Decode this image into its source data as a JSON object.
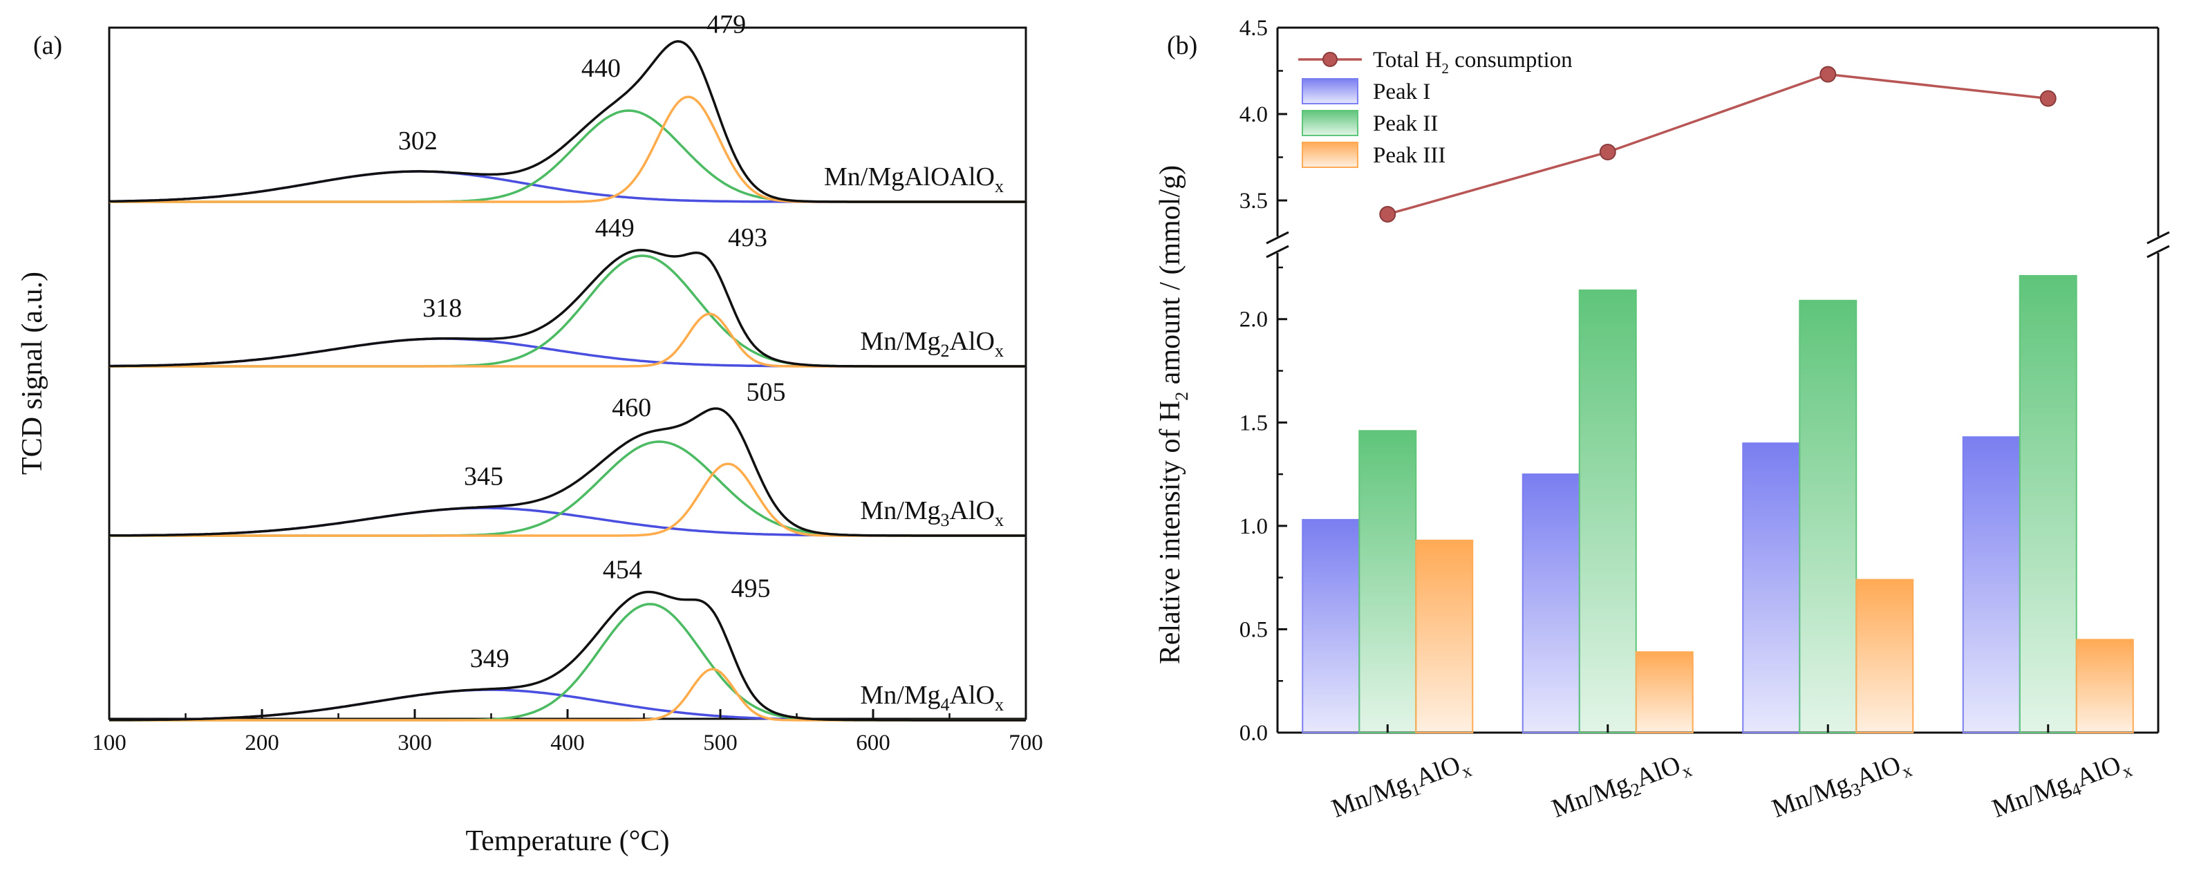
{
  "chart_data": [
    {
      "panel": "(a)",
      "type": "line",
      "xlabel": "Temperature (°C)",
      "ylabel": "TCD signal (a.u.)",
      "xlim": [
        100,
        700
      ],
      "xticks": [
        "100",
        "200",
        "300",
        "400",
        "500",
        "600",
        "700"
      ],
      "samples": [
        {
          "name": "Mn/MgAlO",
          "sub1": "",
          "sub2": "x",
          "peak_labels": [
            "302",
            "440",
            "479"
          ],
          "peaks": [
            {
              "name": "Peak I",
              "center": 302,
              "height": 0.22,
              "width": 70,
              "color": "#4a4fe0"
            },
            {
              "name": "Peak II",
              "center": 440,
              "height": 0.66,
              "width": 35,
              "color": "#4cbb63"
            },
            {
              "name": "Peak III",
              "center": 479,
              "height": 0.76,
              "width": 20,
              "color": "#ffac4c"
            }
          ]
        },
        {
          "name": "Mn/Mg",
          "sub1": "2",
          "sub2": "x",
          "peak_labels": [
            "318",
            "449",
            "493"
          ],
          "peaks": [
            {
              "name": "Peak I",
              "center": 318,
              "height": 0.2,
              "width": 72,
              "color": "#4a4fe0"
            },
            {
              "name": "Peak II",
              "center": 449,
              "height": 0.8,
              "width": 36,
              "color": "#4cbb63"
            },
            {
              "name": "Peak III",
              "center": 493,
              "height": 0.38,
              "width": 14,
              "color": "#ffac4c"
            }
          ]
        },
        {
          "name": "Mn/Mg",
          "sub1": "3",
          "sub2": "x",
          "peak_labels": [
            "345",
            "460",
            "505"
          ],
          "peaks": [
            {
              "name": "Peak I",
              "center": 345,
              "height": 0.2,
              "width": 75,
              "color": "#4a4fe0"
            },
            {
              "name": "Peak II",
              "center": 460,
              "height": 0.68,
              "width": 38,
              "color": "#4cbb63"
            },
            {
              "name": "Peak III",
              "center": 505,
              "height": 0.52,
              "width": 18,
              "color": "#ffac4c"
            }
          ]
        },
        {
          "name": "Mn/Mg",
          "sub1": "4",
          "sub2": "x",
          "peak_labels": [
            "349",
            "454",
            "495"
          ],
          "peaks": [
            {
              "name": "Peak I",
              "center": 349,
              "height": 0.22,
              "width": 75,
              "color": "#4a4fe0"
            },
            {
              "name": "Peak II",
              "center": 454,
              "height": 0.84,
              "width": 33,
              "color": "#4cbb63"
            },
            {
              "name": "Peak III",
              "center": 495,
              "height": 0.37,
              "width": 14,
              "color": "#ffac4c"
            }
          ]
        }
      ]
    },
    {
      "panel": "(b)",
      "type": "bar",
      "ylabel_parts": [
        "Relative intensity of H",
        "2",
        " amount / (mmol/g)"
      ],
      "categories": [
        {
          "pre": "Mn/Mg",
          "sub1": "1",
          "mid": "AlO",
          "sub2": "x"
        },
        {
          "pre": "Mn/Mg",
          "sub1": "2",
          "mid": "AlO",
          "sub2": "x"
        },
        {
          "pre": "Mn/Mg",
          "sub1": "3",
          "mid": "AlO",
          "sub2": "x"
        },
        {
          "pre": "Mn/Mg",
          "sub1": "4",
          "mid": "AlO",
          "sub2": "x"
        }
      ],
      "series": [
        {
          "name": "Peak I",
          "values": [
            1.03,
            1.25,
            1.4,
            1.43
          ],
          "color": "#7a7ef0"
        },
        {
          "name": "Peak II",
          "values": [
            1.46,
            2.14,
            2.09,
            2.21
          ],
          "color": "#5fc57a"
        },
        {
          "name": "Peak III",
          "values": [
            0.93,
            0.39,
            0.74,
            0.45
          ],
          "color": "#ffaa55"
        }
      ],
      "line_series": {
        "name_parts": [
          "Total H",
          "2",
          " consumption"
        ],
        "values": [
          3.42,
          3.78,
          4.23,
          4.09
        ],
        "color": "#b85555"
      },
      "legend": [
        {
          "parts": [
            "Total H",
            "2",
            " consumption"
          ]
        },
        {
          "parts": [
            "Peak I",
            "",
            ""
          ]
        },
        {
          "parts": [
            "Peak II",
            "",
            ""
          ]
        },
        {
          "parts": [
            "Peak III",
            "",
            ""
          ]
        }
      ],
      "ylim_lower": [
        0,
        2.3
      ],
      "ylim_upper": [
        3.3,
        4.5
      ],
      "yticks_lower": [
        "0.0",
        "0.5",
        "1.0",
        "1.5",
        "2.0"
      ],
      "yticks_upper": [
        "3.5",
        "4.0",
        "4.5"
      ]
    }
  ]
}
